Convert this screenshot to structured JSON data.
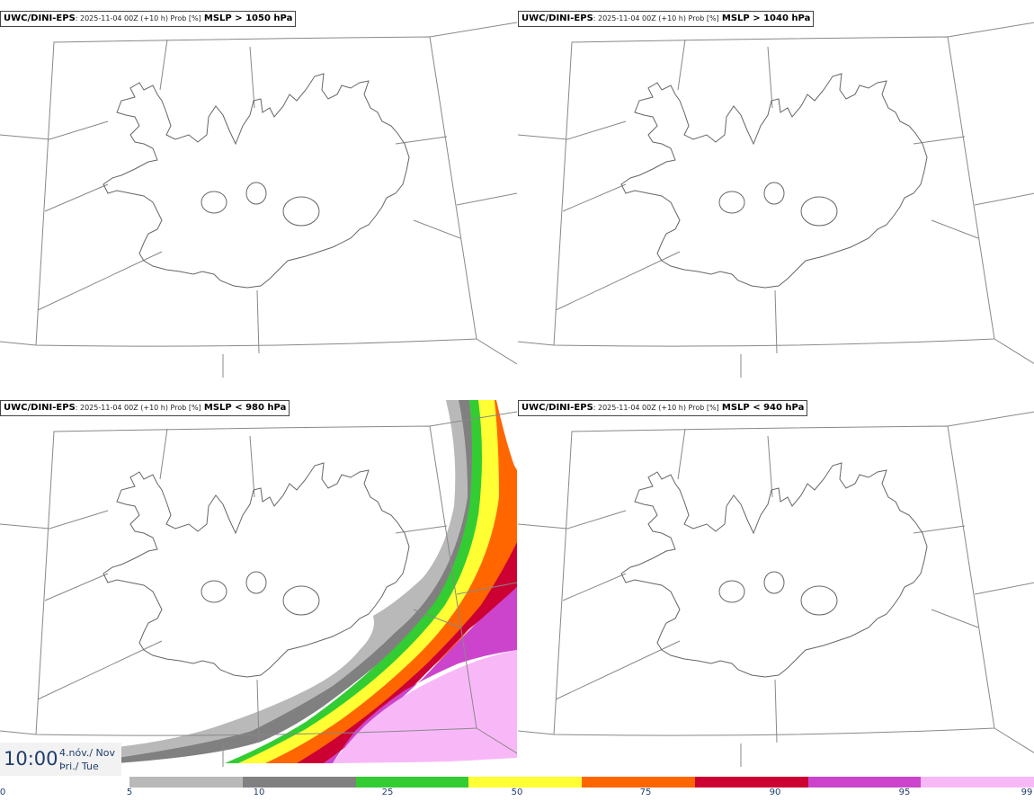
{
  "panels": [
    {
      "model": "UWC/DINI-EPS",
      "run": ": 2025-11-04 00Z (+10 h) Prob [%]",
      "threshold": "MSLP > 1050 hPa"
    },
    {
      "model": "UWC/DINI-EPS",
      "run": ": 2025-11-04 00Z (+10 h) Prob [%]",
      "threshold": "MSLP > 1040 hPa"
    },
    {
      "model": "UWC/DINI-EPS",
      "run": ": 2025-11-04 00Z (+10 h) Prob [%]",
      "threshold": "MSLP < 980 hPa"
    },
    {
      "model": "UWC/DINI-EPS",
      "run": ": 2025-11-04 00Z (+10 h) Prob [%]",
      "threshold": "MSLP < 940 hPa"
    }
  ],
  "valid_time": {
    "time": "10:00",
    "date_local": "4.nóv./ Nov",
    "day_local": "Þri./ Tue"
  },
  "legend": {
    "ticks": [
      "0",
      "5",
      "10",
      "25",
      "50",
      "75",
      "90",
      "95",
      "99"
    ],
    "colors": [
      "#b9b9b9",
      "#808080",
      "#33cc33",
      "#ffff33",
      "#ff6600",
      "#cc0033",
      "#cc44cc",
      "#f8b8f8"
    ]
  },
  "colors": {
    "coast": "#666666",
    "grid": "#888888",
    "label_text": "#1f3d6b"
  }
}
